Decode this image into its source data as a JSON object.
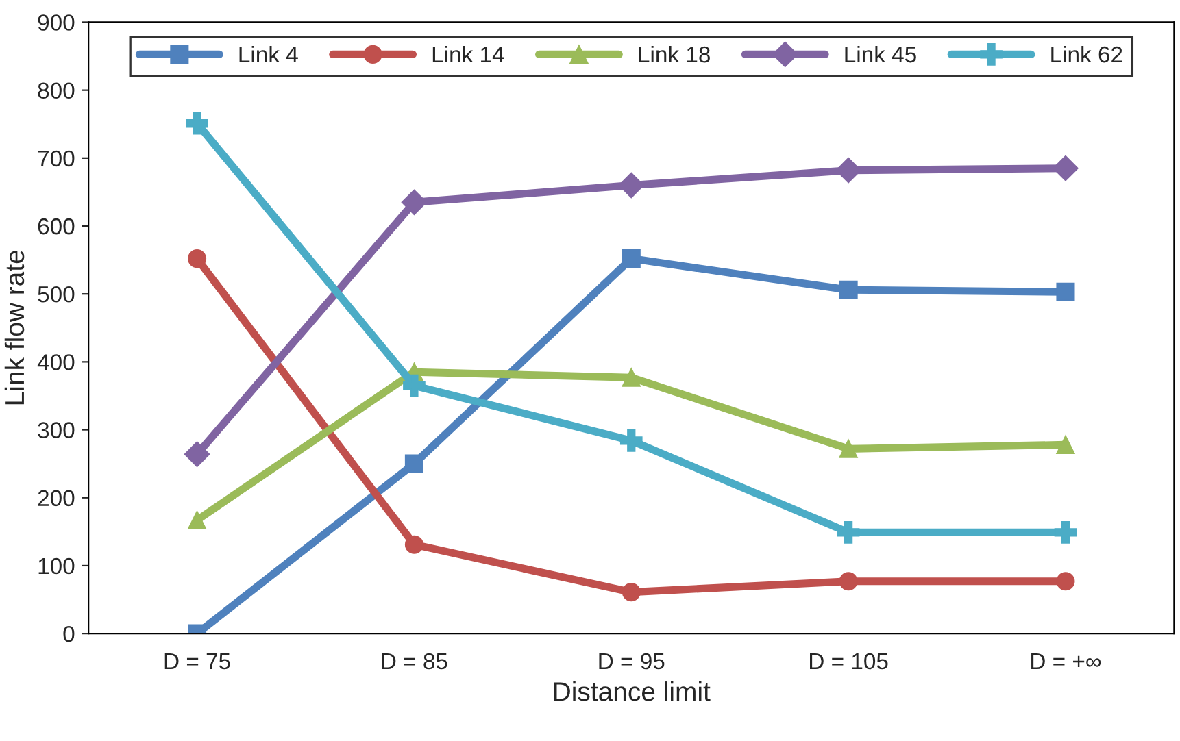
{
  "chart_data": {
    "type": "line",
    "xlabel": "Distance limit",
    "ylabel": "Link flow rate",
    "categories": [
      "D = 75",
      "D = 85",
      "D = 95",
      "D = 105",
      "D = +∞"
    ],
    "ylim": [
      0,
      900
    ],
    "yticks": [
      0,
      100,
      200,
      300,
      400,
      500,
      600,
      700,
      800,
      900
    ],
    "grid": false,
    "legend": "top",
    "line_style": "solid",
    "series": [
      {
        "name": "Link 4",
        "color": "#4f81bd",
        "marker": "square",
        "values": [
          0,
          250,
          552,
          506,
          503
        ]
      },
      {
        "name": "Link 14",
        "color": "#c0504d",
        "marker": "circle",
        "values": [
          552,
          131,
          61,
          77,
          77
        ]
      },
      {
        "name": "Link 18",
        "color": "#9bbb59",
        "marker": "triangle",
        "values": [
          167,
          385,
          377,
          272,
          278
        ]
      },
      {
        "name": "Link 45",
        "color": "#8064a2",
        "marker": "diamond",
        "values": [
          264,
          635,
          660,
          682,
          685
        ]
      },
      {
        "name": "Link 62",
        "color": "#4bacc6",
        "marker": "cross",
        "values": [
          751,
          365,
          284,
          149,
          149
        ]
      }
    ]
  }
}
